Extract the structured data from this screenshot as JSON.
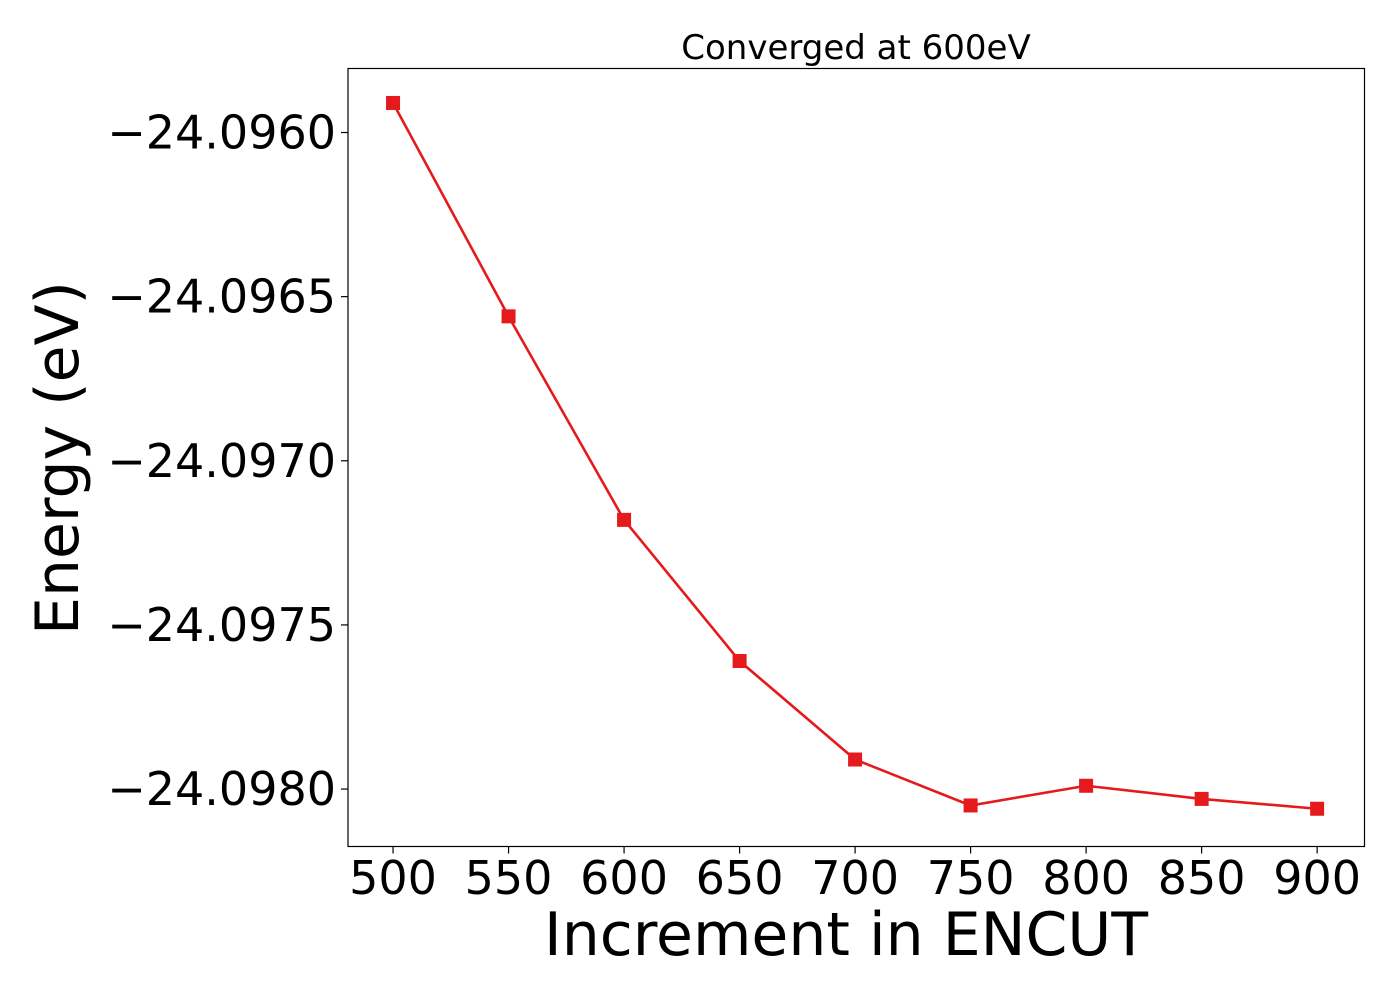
{
  "chart_data": {
    "type": "line",
    "title": "Converged at 600eV",
    "xlabel": "Increment in ENCUT",
    "ylabel": "Energy (eV)",
    "x": [
      500,
      550,
      600,
      650,
      700,
      750,
      800,
      850,
      900
    ],
    "series": [
      {
        "values": [
          -24.09591,
          -24.09656,
          -24.09718,
          -24.09761,
          -24.09791,
          -24.09805,
          -24.09799,
          -24.09803,
          -24.09806
        ],
        "color": "#e41a1c",
        "marker": "square"
      }
    ],
    "xticks": [
      500,
      550,
      600,
      650,
      700,
      750,
      800,
      850,
      900
    ],
    "xtick_labels": [
      "500",
      "550",
      "600",
      "650",
      "700",
      "750",
      "800",
      "850",
      "900"
    ],
    "yticks": [
      -24.096,
      -24.0965,
      -24.097,
      -24.0975,
      -24.098
    ],
    "ytick_labels": [
      "−24.0960",
      "−24.0965",
      "−24.0970",
      "−24.0975",
      "−24.0980"
    ],
    "xlim": [
      480.5,
      920.5
    ],
    "ylim": [
      -24.098175,
      -24.095805
    ],
    "grid": false,
    "legend": "none"
  }
}
